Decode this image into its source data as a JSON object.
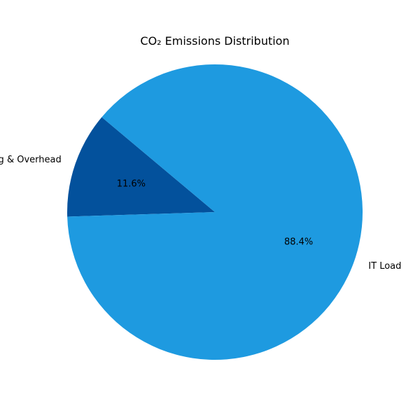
{
  "chart_data": {
    "type": "pie",
    "title": "CO₂ Emissions Distribution",
    "labels": [
      "Cooling & Overhead",
      "IT Load"
    ],
    "values": [
      11.6,
      88.4
    ],
    "percent_labels": [
      "11.6%",
      "88.4%"
    ],
    "colors": [
      "#03519c",
      "#1e9ae0"
    ],
    "start_angle_deg": 140,
    "direction": "counterclockwise",
    "legend": "none"
  }
}
